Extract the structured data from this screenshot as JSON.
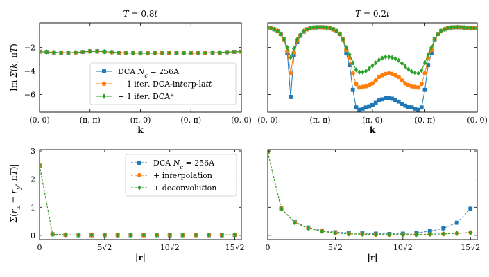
{
  "chart_data": [
    {
      "type": "line",
      "panel": "top-left",
      "title": "T = 0.8t",
      "xlabel": "k",
      "ylabel": "Im Σ(k, πT)",
      "xlim": [
        0,
        4
      ],
      "ylim": [
        -7.5,
        0.1
      ],
      "xticks": [
        0,
        1,
        2,
        3,
        4
      ],
      "xtick_labels": [
        "(0, 0)",
        "(π, π)",
        "(π, 0)",
        "(0, π)",
        "(0, 0)"
      ],
      "yticks": [
        -6,
        -4,
        -2
      ],
      "ytick_labels": [
        "−6",
        "−4",
        "−2"
      ],
      "legend": "center",
      "grid": false,
      "series": [
        {
          "name": "DCA N_c = 256A",
          "color": "#1f77b4",
          "marker": "square",
          "linestyle": "solid",
          "x": [
            0,
            0.143,
            0.286,
            0.429,
            0.571,
            0.714,
            0.857,
            1,
            1.143,
            1.286,
            1.429,
            1.571,
            1.714,
            1.857,
            2,
            2.143,
            2.286,
            2.429,
            2.571,
            2.714,
            2.857,
            3,
            3.143,
            3.286,
            3.429,
            3.571,
            3.714,
            3.857,
            4
          ],
          "values": [
            -2.35,
            -2.38,
            -2.42,
            -2.45,
            -2.45,
            -2.42,
            -2.38,
            -2.33,
            -2.33,
            -2.36,
            -2.4,
            -2.44,
            -2.46,
            -2.48,
            -2.49,
            -2.49,
            -2.48,
            -2.47,
            -2.46,
            -2.46,
            -2.47,
            -2.48,
            -2.47,
            -2.46,
            -2.45,
            -2.43,
            -2.4,
            -2.37,
            -2.35
          ]
        },
        {
          "name": "+ 1 iter. DCA-interp-latt",
          "color": "#ff7f0e",
          "marker": "circle",
          "linestyle": "solid",
          "x": [
            0,
            0.143,
            0.286,
            0.429,
            0.571,
            0.714,
            0.857,
            1,
            1.143,
            1.286,
            1.429,
            1.571,
            1.714,
            1.857,
            2,
            2.143,
            2.286,
            2.429,
            2.571,
            2.714,
            2.857,
            3,
            3.143,
            3.286,
            3.429,
            3.571,
            3.714,
            3.857,
            4
          ],
          "values": [
            -2.35,
            -2.38,
            -2.42,
            -2.45,
            -2.45,
            -2.42,
            -2.38,
            -2.33,
            -2.33,
            -2.36,
            -2.4,
            -2.44,
            -2.46,
            -2.48,
            -2.49,
            -2.49,
            -2.48,
            -2.47,
            -2.46,
            -2.46,
            -2.47,
            -2.48,
            -2.47,
            -2.46,
            -2.45,
            -2.43,
            -2.4,
            -2.37,
            -2.35
          ]
        },
        {
          "name": "+ 1 iter. DCA⁺",
          "color": "#2ca02c",
          "marker": "diamond",
          "linestyle": "solid",
          "x": [
            0,
            0.143,
            0.286,
            0.429,
            0.571,
            0.714,
            0.857,
            1,
            1.143,
            1.286,
            1.429,
            1.571,
            1.714,
            1.857,
            2,
            2.143,
            2.286,
            2.429,
            2.571,
            2.714,
            2.857,
            3,
            3.143,
            3.286,
            3.429,
            3.571,
            3.714,
            3.857,
            4
          ],
          "values": [
            -2.35,
            -2.38,
            -2.42,
            -2.45,
            -2.45,
            -2.42,
            -2.38,
            -2.33,
            -2.33,
            -2.36,
            -2.4,
            -2.44,
            -2.46,
            -2.48,
            -2.49,
            -2.49,
            -2.48,
            -2.47,
            -2.46,
            -2.46,
            -2.47,
            -2.48,
            -2.47,
            -2.46,
            -2.45,
            -2.43,
            -2.4,
            -2.37,
            -2.35
          ]
        }
      ]
    },
    {
      "type": "line",
      "panel": "top-right",
      "title": "T = 0.2t",
      "xlabel": "k",
      "ylabel": "",
      "xlim": [
        0,
        4
      ],
      "ylim": [
        -7.5,
        0.1
      ],
      "xticks": [
        0,
        1,
        2,
        3,
        4
      ],
      "xtick_labels": [
        "(0, 0)",
        "(π, π)",
        "(π, 0)",
        "(0, π)",
        "(0, 0)"
      ],
      "yticks": [
        -6,
        -4,
        -2
      ],
      "ytick_labels": [],
      "grid": false,
      "series": [
        {
          "name": "DCA N_c = 256A",
          "color": "#1f77b4",
          "marker": "square",
          "linestyle": "solid",
          "x": [
            0,
            0.0625,
            0.125,
            0.1875,
            0.25,
            0.3125,
            0.375,
            0.4375,
            0.5,
            0.5625,
            0.625,
            0.6875,
            0.75,
            0.8125,
            0.875,
            0.9375,
            1,
            1.0625,
            1.125,
            1.1875,
            1.25,
            1.3125,
            1.375,
            1.4375,
            1.5,
            1.5625,
            1.625,
            1.6875,
            1.75,
            1.8125,
            1.875,
            1.9375,
            2,
            2.0625,
            2.125,
            2.1875,
            2.25,
            2.3125,
            2.375,
            2.4375,
            2.5,
            2.5625,
            2.625,
            2.6875,
            2.75,
            2.8125,
            2.875,
            2.9375,
            3,
            3.0625,
            3.125,
            3.1875,
            3.25,
            3.3125,
            3.375,
            3.4375,
            3.5,
            3.5625,
            3.625,
            3.6875,
            3.75,
            3.8125,
            3.875,
            3.9375,
            4
          ],
          "values": [
            -0.3,
            -0.35,
            -0.45,
            -0.6,
            -0.85,
            -1.3,
            -2.5,
            -6.2,
            -2.65,
            -1.5,
            -1.0,
            -0.65,
            -0.45,
            -0.35,
            -0.3,
            -0.28,
            -0.27,
            -0.28,
            -0.3,
            -0.35,
            -0.45,
            -0.6,
            -0.85,
            -1.3,
            -2.5,
            -3.5,
            -5.6,
            -7.1,
            -7.3,
            -7.2,
            -7.1,
            -7.0,
            -6.9,
            -6.7,
            -6.5,
            -6.4,
            -6.3,
            -6.3,
            -6.35,
            -6.45,
            -6.6,
            -6.8,
            -6.95,
            -7.05,
            -7.1,
            -7.2,
            -7.3,
            -7.1,
            -5.6,
            -3.5,
            -2.5,
            -1.3,
            -0.85,
            -0.6,
            -0.45,
            -0.35,
            -0.3,
            -0.28,
            -0.27,
            -0.28,
            -0.3,
            -0.32,
            -0.34,
            -0.36,
            -0.37
          ]
        },
        {
          "name": "+ 1 iter. DCA-interp-latt",
          "color": "#ff7f0e",
          "marker": "circle",
          "linestyle": "solid",
          "x": [
            0,
            0.0625,
            0.125,
            0.1875,
            0.25,
            0.3125,
            0.375,
            0.4375,
            0.5,
            0.5625,
            0.625,
            0.6875,
            0.75,
            0.8125,
            0.875,
            0.9375,
            1,
            1.0625,
            1.125,
            1.1875,
            1.25,
            1.3125,
            1.375,
            1.4375,
            1.5,
            1.5625,
            1.625,
            1.6875,
            1.75,
            1.8125,
            1.875,
            1.9375,
            2,
            2.0625,
            2.125,
            2.1875,
            2.25,
            2.3125,
            2.375,
            2.4375,
            2.5,
            2.5625,
            2.625,
            2.6875,
            2.75,
            2.8125,
            2.875,
            2.9375,
            3,
            3.0625,
            3.125,
            3.1875,
            3.25,
            3.3125,
            3.375,
            3.4375,
            3.5,
            3.5625,
            3.625,
            3.6875,
            3.75,
            3.8125,
            3.875,
            3.9375,
            4
          ],
          "values": [
            -0.3,
            -0.35,
            -0.45,
            -0.6,
            -0.85,
            -1.3,
            -2.3,
            -4.2,
            -2.4,
            -1.4,
            -0.95,
            -0.62,
            -0.45,
            -0.35,
            -0.3,
            -0.28,
            -0.27,
            -0.28,
            -0.3,
            -0.35,
            -0.45,
            -0.6,
            -0.85,
            -1.3,
            -2.2,
            -2.9,
            -4.2,
            -5.1,
            -5.4,
            -5.35,
            -5.3,
            -5.2,
            -5.05,
            -4.8,
            -4.5,
            -4.35,
            -4.25,
            -4.2,
            -4.25,
            -4.35,
            -4.5,
            -4.8,
            -5.05,
            -5.2,
            -5.3,
            -5.35,
            -5.4,
            -5.1,
            -4.2,
            -2.9,
            -2.2,
            -1.3,
            -0.85,
            -0.6,
            -0.45,
            -0.35,
            -0.3,
            -0.28,
            -0.27,
            -0.28,
            -0.3,
            -0.32,
            -0.34,
            -0.36,
            -0.37
          ]
        },
        {
          "name": "+ 1 iter. DCA⁺",
          "color": "#2ca02c",
          "marker": "diamond",
          "linestyle": "solid",
          "x": [
            0,
            0.0625,
            0.125,
            0.1875,
            0.25,
            0.3125,
            0.375,
            0.4375,
            0.5,
            0.5625,
            0.625,
            0.6875,
            0.75,
            0.8125,
            0.875,
            0.9375,
            1,
            1.0625,
            1.125,
            1.1875,
            1.25,
            1.3125,
            1.375,
            1.4375,
            1.5,
            1.5625,
            1.625,
            1.6875,
            1.75,
            1.8125,
            1.875,
            1.9375,
            2,
            2.0625,
            2.125,
            2.1875,
            2.25,
            2.3125,
            2.375,
            2.4375,
            2.5,
            2.5625,
            2.625,
            2.6875,
            2.75,
            2.8125,
            2.875,
            2.9375,
            3,
            3.0625,
            3.125,
            3.1875,
            3.25,
            3.3125,
            3.375,
            3.4375,
            3.5,
            3.5625,
            3.625,
            3.6875,
            3.75,
            3.8125,
            3.875,
            3.9375,
            4
          ],
          "values": [
            -0.3,
            -0.35,
            -0.45,
            -0.6,
            -0.85,
            -1.3,
            -2.0,
            -2.85,
            -2.1,
            -1.3,
            -0.9,
            -0.6,
            -0.45,
            -0.35,
            -0.3,
            -0.28,
            -0.27,
            -0.28,
            -0.3,
            -0.35,
            -0.45,
            -0.6,
            -0.85,
            -1.3,
            -2.0,
            -2.6,
            -3.3,
            -3.9,
            -4.1,
            -4.1,
            -4.0,
            -3.8,
            -3.55,
            -3.3,
            -3.05,
            -2.9,
            -2.8,
            -2.8,
            -2.85,
            -2.95,
            -3.1,
            -3.35,
            -3.6,
            -3.85,
            -4.05,
            -4.15,
            -4.2,
            -3.95,
            -3.3,
            -2.6,
            -2.0,
            -1.3,
            -0.85,
            -0.6,
            -0.45,
            -0.35,
            -0.3,
            -0.28,
            -0.27,
            -0.28,
            -0.3,
            -0.32,
            -0.34,
            -0.36,
            -0.37
          ]
        }
      ]
    },
    {
      "type": "line",
      "panel": "bottom-left",
      "title": "",
      "xlabel": "|r|",
      "ylabel": "|Σ(r_x = r_y, πT)|",
      "xlim": [
        0,
        15.5
      ],
      "ylim": [
        -0.15,
        3.05
      ],
      "xticks": [
        0,
        5,
        10,
        15
      ],
      "xtick_labels": [
        "0",
        "5√2",
        "10√2",
        "15√2"
      ],
      "yticks": [
        0,
        1,
        2,
        3
      ],
      "ytick_labels": [
        "0",
        "1",
        "2",
        "3"
      ],
      "legend": "top-right",
      "grid": false,
      "series": [
        {
          "name": "DCA N_c = 256A",
          "color": "#1f77b4",
          "marker": "square",
          "linestyle": "dashed",
          "x": [
            0,
            1,
            2,
            3,
            4,
            5,
            6,
            7,
            8,
            9,
            10,
            11,
            12,
            13,
            14,
            15
          ],
          "values": [
            2.48,
            0.04,
            0.02,
            0.01,
            0.01,
            0.01,
            0.01,
            0.01,
            0.01,
            0.01,
            0.01,
            0.01,
            0.01,
            0.01,
            0.01,
            0.02
          ]
        },
        {
          "name": "+ interpolation",
          "color": "#ff7f0e",
          "marker": "circle",
          "linestyle": "dashed",
          "x": [
            0,
            1,
            2,
            3,
            4,
            5,
            6,
            7,
            8,
            9,
            10,
            11,
            12,
            13,
            14,
            15
          ],
          "values": [
            2.48,
            0.04,
            0.02,
            0.01,
            0.01,
            0.01,
            0.01,
            0.01,
            0.01,
            0.01,
            0.01,
            0.01,
            0.01,
            0.01,
            0.01,
            0.02
          ]
        },
        {
          "name": "+ deconvolution",
          "color": "#2ca02c",
          "marker": "diamond",
          "linestyle": "dashed",
          "x": [
            0,
            1,
            2,
            3,
            4,
            5,
            6,
            7,
            8,
            9,
            10,
            11,
            12,
            13,
            14,
            15
          ],
          "values": [
            2.48,
            0.04,
            0.02,
            0.01,
            0.01,
            0.01,
            0.01,
            0.01,
            0.01,
            0.01,
            0.01,
            0.01,
            0.01,
            0.01,
            0.01,
            0.02
          ]
        }
      ]
    },
    {
      "type": "line",
      "panel": "bottom-right",
      "title": "",
      "xlabel": "|r|",
      "ylabel": "",
      "xlim": [
        0,
        15.5
      ],
      "ylim": [
        -0.15,
        3.05
      ],
      "xticks": [
        0,
        5,
        10,
        15
      ],
      "xtick_labels": [
        "0",
        "5√2",
        "10√2",
        "15√2"
      ],
      "yticks": [
        0,
        1,
        2,
        3
      ],
      "ytick_labels": [],
      "grid": false,
      "series": [
        {
          "name": "DCA N_c = 256A",
          "color": "#1f77b4",
          "marker": "square",
          "linestyle": "dashed",
          "x": [
            0,
            1,
            2,
            3,
            4,
            5,
            6,
            7,
            8,
            9,
            10,
            11,
            12,
            13,
            14,
            15
          ],
          "values": [
            2.95,
            0.95,
            0.47,
            0.28,
            0.17,
            0.11,
            0.09,
            0.07,
            0.06,
            0.05,
            0.06,
            0.09,
            0.15,
            0.25,
            0.45,
            0.95
          ]
        },
        {
          "name": "+ interpolation",
          "color": "#ff7f0e",
          "marker": "circle",
          "linestyle": "dashed",
          "x": [
            0,
            1,
            2,
            3,
            4,
            5,
            6,
            7,
            8,
            9,
            10,
            11,
            12,
            13,
            14,
            15
          ],
          "values": [
            2.95,
            0.95,
            0.46,
            0.26,
            0.15,
            0.09,
            0.06,
            0.04,
            0.03,
            0.03,
            0.03,
            0.03,
            0.04,
            0.05,
            0.07,
            0.1
          ]
        },
        {
          "name": "+ deconvolution",
          "color": "#2ca02c",
          "marker": "diamond",
          "linestyle": "dashed",
          "x": [
            0,
            1,
            2,
            3,
            4,
            5,
            6,
            7,
            8,
            9,
            10,
            11,
            12,
            13,
            14,
            15
          ],
          "values": [
            2.95,
            0.95,
            0.45,
            0.25,
            0.14,
            0.08,
            0.05,
            0.04,
            0.03,
            0.03,
            0.03,
            0.03,
            0.04,
            0.05,
            0.07,
            0.1
          ]
        }
      ]
    }
  ]
}
